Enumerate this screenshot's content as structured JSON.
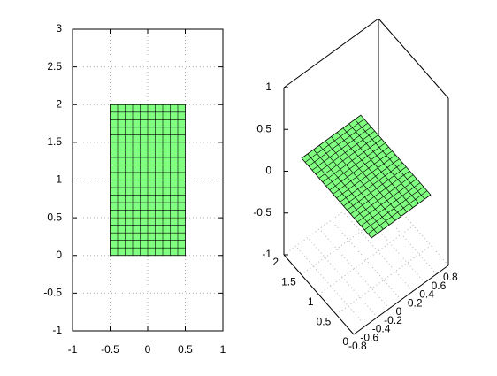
{
  "chart_data": [
    {
      "type": "mesh",
      "xlim": [
        -1,
        1
      ],
      "ylim": [
        -1,
        3
      ],
      "xticks": [
        -1,
        -0.5,
        0,
        0.5,
        1
      ],
      "yticks": [
        -1,
        -0.5,
        0,
        0.5,
        1,
        1.5,
        2,
        2.5,
        3
      ],
      "grid": true,
      "color": "#80ff80",
      "x": [
        -0.5,
        0.5
      ],
      "y": [
        0,
        2
      ],
      "divisions": [
        10,
        20
      ]
    },
    {
      "type": "surface3d",
      "xlim": [
        -0.8,
        0.8
      ],
      "ylim": [
        0,
        2
      ],
      "zlim": [
        -1,
        1
      ],
      "xticks": [
        -0.8,
        -0.6,
        -0.4,
        -0.2,
        0,
        0.2,
        0.4,
        0.6,
        0.8
      ],
      "yticks": [
        0,
        0.5,
        1,
        1.5,
        2
      ],
      "zticks": [
        -1,
        -0.5,
        0,
        0.5,
        1
      ],
      "grid": true,
      "color": "#80ff80",
      "x": [
        -0.5,
        0.5
      ],
      "y": [
        0,
        2
      ],
      "z": 0,
      "divisions": [
        10,
        20
      ]
    }
  ]
}
